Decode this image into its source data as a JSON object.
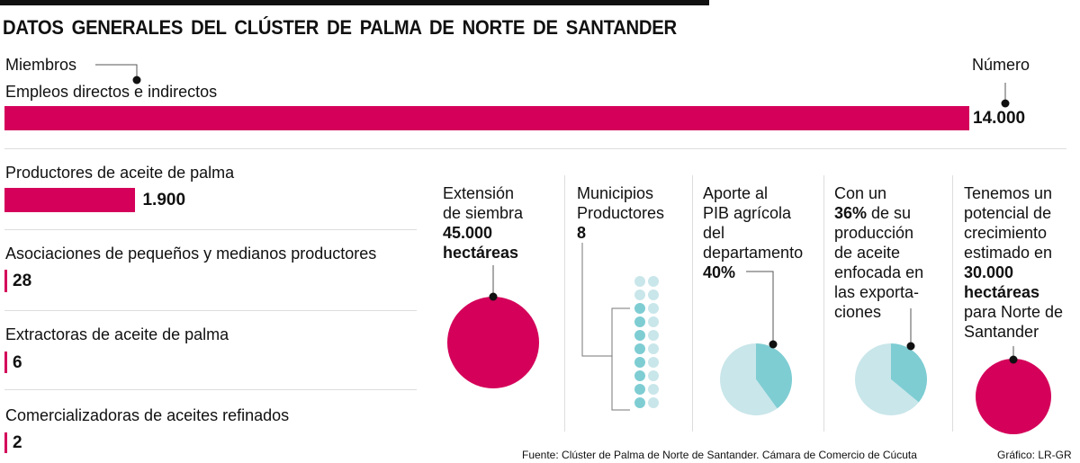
{
  "title": "DATOS  GENERALES  DEL  CLÚSTER DE PALMA DE NORTE DE SANTANDER",
  "legend": {
    "members": "Miembros",
    "number": "Número"
  },
  "colors": {
    "magenta": "#d4005a",
    "teal": "#7ecdd3",
    "light_teal": "#c9e6ea"
  },
  "chart_data": [
    {
      "type": "bar",
      "title": "Miembros",
      "categories": [
        "Empleos directos e indirectos",
        "Productores de aceite de palma",
        "Asociaciones de pequeños y medianos productores",
        "Extractoras de aceite de palma",
        "Comercializadoras de aceites refinados"
      ],
      "values": [
        14000,
        1900,
        28,
        6,
        2
      ],
      "labels": [
        "14.000",
        "1.900",
        "28",
        "6",
        "2"
      ]
    },
    {
      "type": "pie",
      "title": "Extensión de siembra",
      "values": [
        100
      ],
      "label": "45.000 hectáreas"
    },
    {
      "type": "pictogram",
      "title": "Municipios Productores",
      "total": 20,
      "highlighted": 8,
      "label": "8"
    },
    {
      "type": "pie",
      "title": "Aporte al PIB agrícola del departamento",
      "values": [
        40,
        60
      ],
      "label": "40%"
    },
    {
      "type": "pie",
      "title": "Exportaciones",
      "values": [
        36,
        64
      ],
      "label": "36%"
    },
    {
      "type": "pie",
      "title": "Potencial de crecimiento",
      "values": [
        100
      ],
      "label": "30.000 hectáreas"
    }
  ],
  "panels": {
    "p1": {
      "l1": "Extensión",
      "l2": "de siembra",
      "b1": "45.000",
      "b2": "hectáreas"
    },
    "p2": {
      "l1": "Municipios",
      "l2": "Productores",
      "b1": "8"
    },
    "p3": {
      "l1": "Aporte al",
      "l2": "PIB agrícola",
      "l3": "del",
      "l4": "departamento",
      "b1": "40%"
    },
    "p4": {
      "l1": "Con un",
      "b1": "36%",
      "l2": " de su",
      "l3": "producción",
      "l4": "de aceite",
      "l5": "enfocada en",
      "l6": "las exporta-",
      "l7": "ciones"
    },
    "p5": {
      "l1": "Tenemos un",
      "l2": "potencial de",
      "l3": "crecimiento",
      "l4": "estimado en",
      "b1": "30.000",
      "b2": "hectáreas",
      "l5": "para Norte de",
      "l6": "Santander"
    }
  },
  "source": "Fuente: Clúster de Palma de Norte de Santander. Cámara de Comercio de Cúcuta",
  "credit": "Gráfico: LR-GR"
}
